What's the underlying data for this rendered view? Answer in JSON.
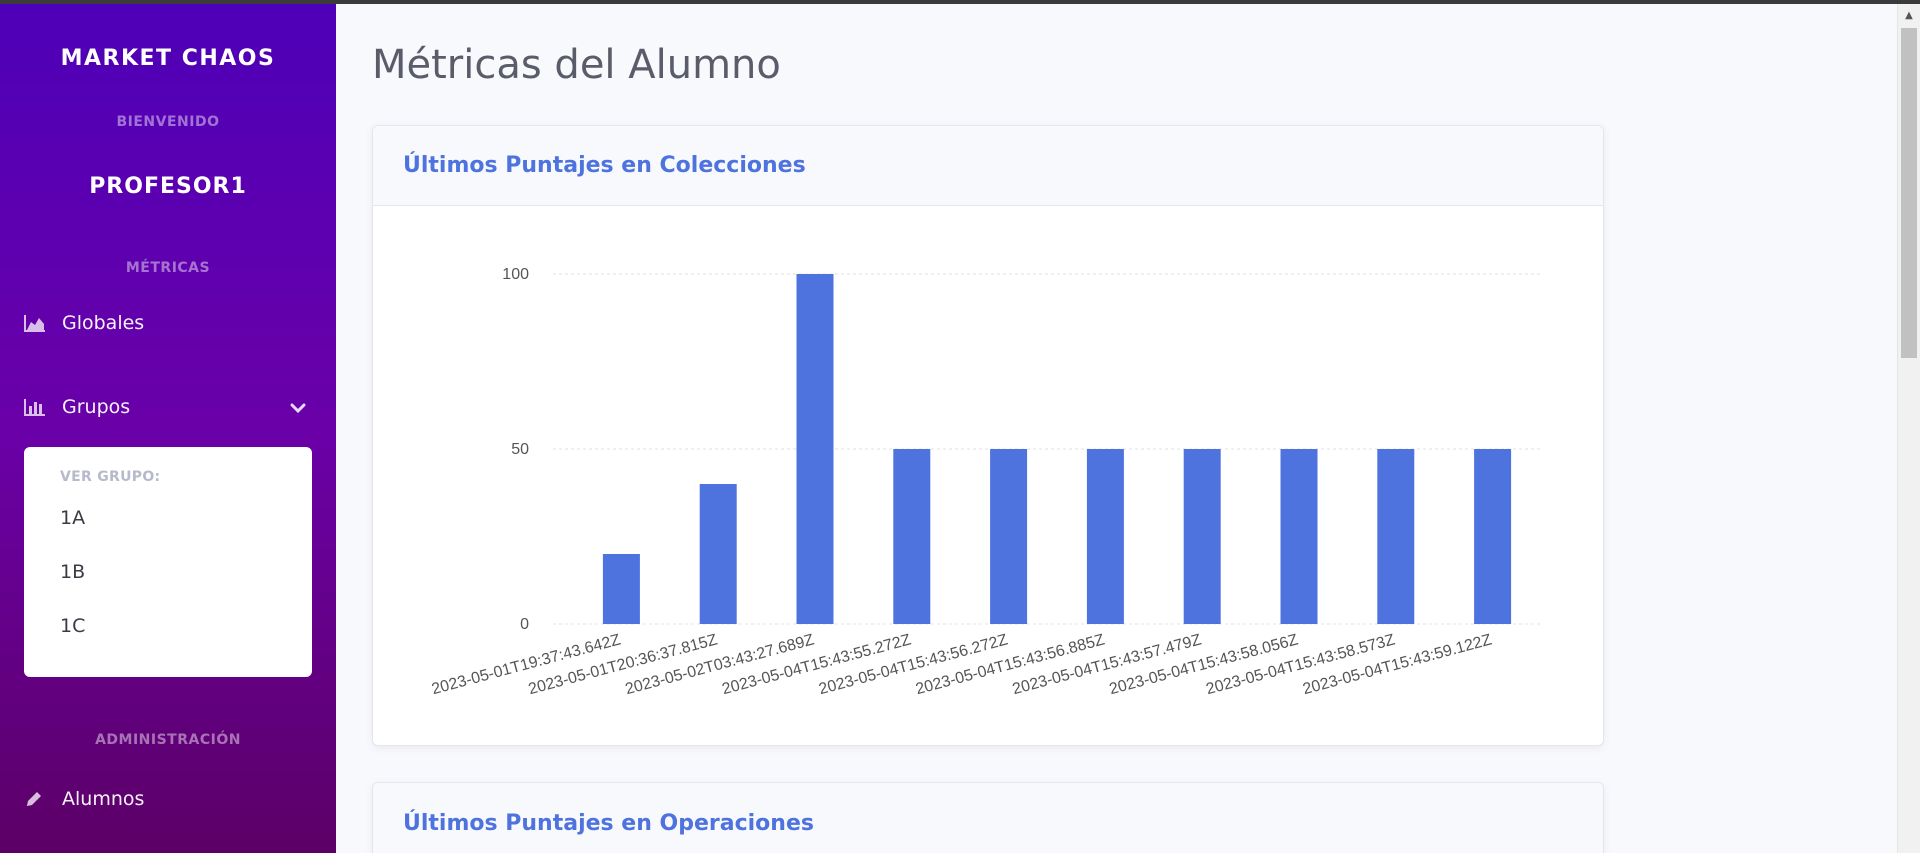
{
  "sidebar": {
    "brand": "MARKET CHAOS",
    "welcome_heading": "BIENVENIDO",
    "username": "PROFESOR1",
    "metrics_heading": "MÉTRICAS",
    "items": [
      {
        "label": "Globales",
        "icon": "chart-area-icon"
      },
      {
        "label": "Grupos",
        "icon": "chart-bar-icon"
      }
    ],
    "groups_panel": {
      "heading": "VER GRUPO:",
      "items": [
        "1A",
        "1B",
        "1C"
      ]
    },
    "admin_heading": "ADMINISTRACIÓN",
    "admin_items": [
      {
        "label": "Alumnos",
        "icon": "pencil-icon"
      }
    ]
  },
  "main": {
    "title": "Métricas del Alumno",
    "cards": [
      {
        "title": "Últimos Puntajes en Colecciones"
      },
      {
        "title": "Últimos Puntajes en Operaciones"
      }
    ]
  },
  "colors": {
    "accent": "#4e73df",
    "sidebar_top": "#4e00b8",
    "sidebar_bottom": "#5c0066"
  },
  "chart_data": {
    "type": "bar",
    "title": "",
    "xlabel": "",
    "ylabel": "",
    "ylim": [
      0,
      100
    ],
    "yticks": [
      0,
      50,
      100
    ],
    "grid": true,
    "categories": [
      "2023-05-01T19:37:43.642Z",
      "2023-05-01T20:36:37.815Z",
      "2023-05-02T03:43:27.689Z",
      "2023-05-04T15:43:55.272Z",
      "2023-05-04T15:43:56.272Z",
      "2023-05-04T15:43:56.885Z",
      "2023-05-04T15:43:57.479Z",
      "2023-05-04T15:43:58.056Z",
      "2023-05-04T15:43:58.573Z",
      "2023-05-04T15:43:59.122Z"
    ],
    "values": [
      20,
      40,
      100,
      50,
      50,
      50,
      50,
      50,
      50,
      50
    ],
    "color": "#4e73df"
  }
}
